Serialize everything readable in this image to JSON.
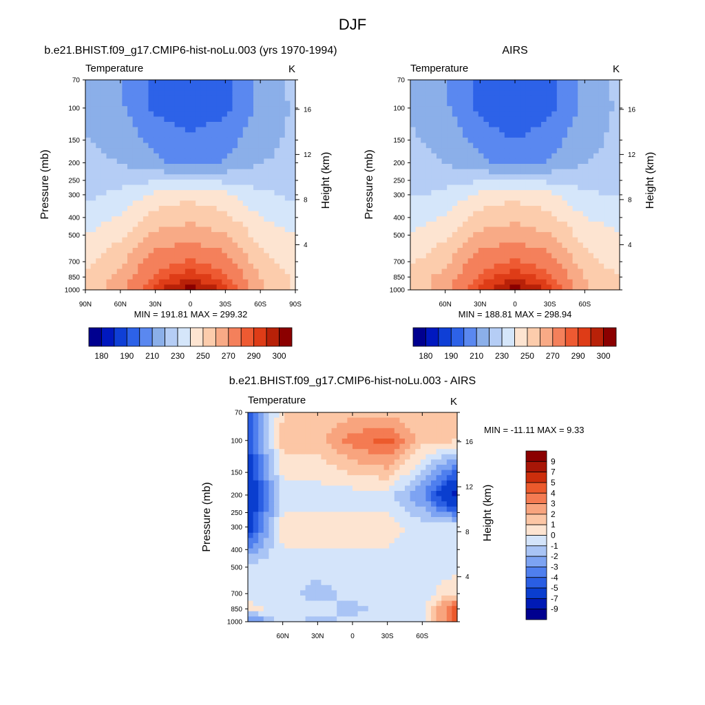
{
  "page_title": "DJF",
  "colors": {
    "cold": [
      "#00008f",
      "#0018bf",
      "#0f3fd6",
      "#2d62e8",
      "#5a88f0",
      "#8bafe9",
      "#b5cdf5",
      "#d5e6fa"
    ],
    "warm": [
      "#fde4d1",
      "#fcccac",
      "#f8aa86",
      "#f4805b",
      "#ee5a32",
      "#de3c17",
      "#b82108",
      "#8b0000"
    ]
  },
  "panels": [
    {
      "id": "model",
      "title": "b.e21.BHIST.f09_g17.CMIP6-hist-noLu.003 (yrs 1970-1994)",
      "variable": "Temperature",
      "unit": "K",
      "y_label": "Pressure (mb)",
      "y2_label": "Height (km)",
      "pressure_ticks": [
        "70",
        "100",
        "150",
        "200",
        "250",
        "300",
        "400",
        "500",
        "700",
        "850",
        "1000"
      ],
      "height_ticks": [
        "16",
        "12",
        "8",
        "4"
      ],
      "lat_ticks": [
        "90N",
        "60N",
        "30N",
        "0",
        "30S",
        "60S",
        "90S"
      ],
      "stats": "MIN = 191.81  MAX = 299.32",
      "colorbar_labels": [
        "180",
        "190",
        "210",
        "230",
        "250",
        "270",
        "290",
        "300"
      ]
    },
    {
      "id": "obs",
      "title": "AIRS",
      "variable": "Temperature",
      "unit": "K",
      "y_label": "Pressure (mb)",
      "y2_label": "Height (km)",
      "pressure_ticks": [
        "70",
        "100",
        "150",
        "200",
        "250",
        "300",
        "400",
        "500",
        "700",
        "850",
        "1000"
      ],
      "height_ticks": [
        "16",
        "12",
        "8",
        "4"
      ],
      "lat_ticks": [
        "60N",
        "30N",
        "0",
        "30S",
        "60S"
      ],
      "stats": "MIN = 188.81  MAX = 298.94",
      "colorbar_labels": [
        "180",
        "190",
        "210",
        "230",
        "250",
        "270",
        "290",
        "300"
      ]
    },
    {
      "id": "diff",
      "title": "b.e21.BHIST.f09_g17.CMIP6-hist-noLu.003 - AIRS",
      "variable": "Temperature",
      "unit": "K",
      "y_label": "Pressure (mb)",
      "y2_label": "Height (km)",
      "pressure_ticks": [
        "70",
        "100",
        "150",
        "200",
        "250",
        "300",
        "400",
        "500",
        "700",
        "850",
        "1000"
      ],
      "height_ticks": [
        "16",
        "12",
        "8",
        "4"
      ],
      "lat_ticks": [
        "60N",
        "30N",
        "0",
        "30S",
        "60S"
      ],
      "stats": "MIN = -11.11  MAX =   9.33",
      "colorbar_labels": [
        "9",
        "7",
        "5",
        "4",
        "3",
        "2",
        "1",
        "0",
        "-1",
        "-2",
        "-3",
        "-4",
        "-5",
        "-7",
        "-9"
      ]
    }
  ],
  "chart_data": [
    {
      "type": "heatmap",
      "title": "b.e21.BHIST.f09_g17.CMIP6-hist-noLu.003 (yrs 1970-1994)",
      "xlabel": "",
      "ylabel": "Pressure (mb)",
      "y2label": "Height (km)",
      "x_ticks": [
        "90N",
        "60N",
        "30N",
        "0",
        "30S",
        "60S",
        "90S"
      ],
      "y_ticks": [
        70,
        100,
        150,
        200,
        250,
        300,
        400,
        500,
        700,
        850,
        1000
      ],
      "y_scale": "log",
      "ylim": [
        1000,
        70
      ],
      "contour_levels": [
        180,
        185,
        190,
        200,
        210,
        220,
        230,
        240,
        250,
        260,
        270,
        280,
        285,
        290,
        295,
        300
      ],
      "min": 191.81,
      "max": 299.32,
      "lat": [
        90,
        60,
        30,
        0,
        -30,
        -60,
        -90
      ],
      "pressure": [
        1000,
        850,
        700,
        500,
        300,
        200,
        100,
        70
      ],
      "values": [
        [
          250,
          268,
          288,
          299,
          289,
          262,
          248
        ],
        [
          252,
          264,
          282,
          289,
          282,
          260,
          249
        ],
        [
          247,
          258,
          276,
          281,
          275,
          254,
          243
        ],
        [
          240,
          248,
          262,
          266,
          261,
          246,
          240
        ],
        [
          228,
          232,
          243,
          247,
          242,
          232,
          228
        ],
        [
          222,
          220,
          212,
          207,
          211,
          220,
          222
        ],
        [
          218,
          212,
          198,
          194,
          198,
          212,
          222
        ],
        [
          214,
          210,
          198,
          194,
          198,
          212,
          224
        ]
      ]
    },
    {
      "type": "heatmap",
      "title": "AIRS",
      "xlabel": "",
      "ylabel": "Pressure (mb)",
      "y2label": "Height (km)",
      "x_ticks": [
        "60N",
        "30N",
        "0",
        "30S",
        "60S"
      ],
      "y_ticks": [
        70,
        100,
        150,
        200,
        250,
        300,
        400,
        500,
        700,
        850,
        1000
      ],
      "y_scale": "log",
      "ylim": [
        1000,
        70
      ],
      "contour_levels": [
        180,
        185,
        190,
        200,
        210,
        220,
        230,
        240,
        250,
        260,
        270,
        280,
        285,
        290,
        295,
        300
      ],
      "min": 188.81,
      "max": 298.94,
      "lat": [
        90,
        60,
        30,
        0,
        -30,
        -60,
        -90
      ],
      "pressure": [
        1000,
        850,
        700,
        500,
        300,
        200,
        100,
        70
      ],
      "values": [
        [
          251,
          268,
          288,
          298,
          289,
          262,
          249
        ],
        [
          253,
          264,
          282,
          289,
          282,
          260,
          250
        ],
        [
          248,
          258,
          276,
          281,
          275,
          254,
          244
        ],
        [
          241,
          248,
          262,
          266,
          261,
          246,
          241
        ],
        [
          229,
          232,
          243,
          247,
          242,
          232,
          229
        ],
        [
          223,
          220,
          212,
          207,
          211,
          220,
          223
        ],
        [
          219,
          212,
          198,
          190,
          198,
          212,
          222
        ],
        [
          214,
          210,
          198,
          195,
          198,
          212,
          224
        ]
      ]
    },
    {
      "type": "heatmap",
      "title": "b.e21.BHIST.f09_g17.CMIP6-hist-noLu.003 - AIRS",
      "xlabel": "",
      "ylabel": "Pressure (mb)",
      "y2label": "Height (km)",
      "x_ticks": [
        "60N",
        "30N",
        "0",
        "30S",
        "60S"
      ],
      "y_ticks": [
        70,
        100,
        150,
        200,
        250,
        300,
        400,
        500,
        700,
        850,
        1000
      ],
      "y_scale": "log",
      "ylim": [
        1000,
        70
      ],
      "contour_levels": [
        -9,
        -7,
        -5,
        -4,
        -3,
        -2,
        -1,
        0,
        1,
        2,
        3,
        4,
        5,
        7,
        9
      ],
      "min": -11.11,
      "max": 9.33,
      "lat": [
        90,
        60,
        30,
        0,
        -30,
        -60,
        -90
      ],
      "pressure": [
        1000,
        850,
        700,
        500,
        300,
        200,
        100,
        70
      ],
      "values": [
        [
          -4,
          -0.5,
          -1.5,
          -0.5,
          -0.5,
          -0.5,
          5
        ],
        [
          0.5,
          -0.5,
          -0.5,
          -1.5,
          -0.5,
          -0.5,
          5
        ],
        [
          -0.5,
          -0.5,
          -1.5,
          -0.5,
          -0.5,
          -0.5,
          1
        ],
        [
          -0.5,
          -0.5,
          -0.5,
          -0.5,
          -0.5,
          -0.5,
          -0.5
        ],
        [
          -6,
          0.5,
          0.5,
          0.5,
          0.5,
          -0.5,
          -0.5
        ],
        [
          -7,
          -0.5,
          -0.5,
          -0.5,
          -0.5,
          -3,
          -8
        ],
        [
          -5,
          1.5,
          1.5,
          3.5,
          4.5,
          1.5,
          1
        ],
        [
          -5,
          1,
          1.5,
          1.5,
          1.5,
          1,
          1
        ]
      ]
    }
  ]
}
